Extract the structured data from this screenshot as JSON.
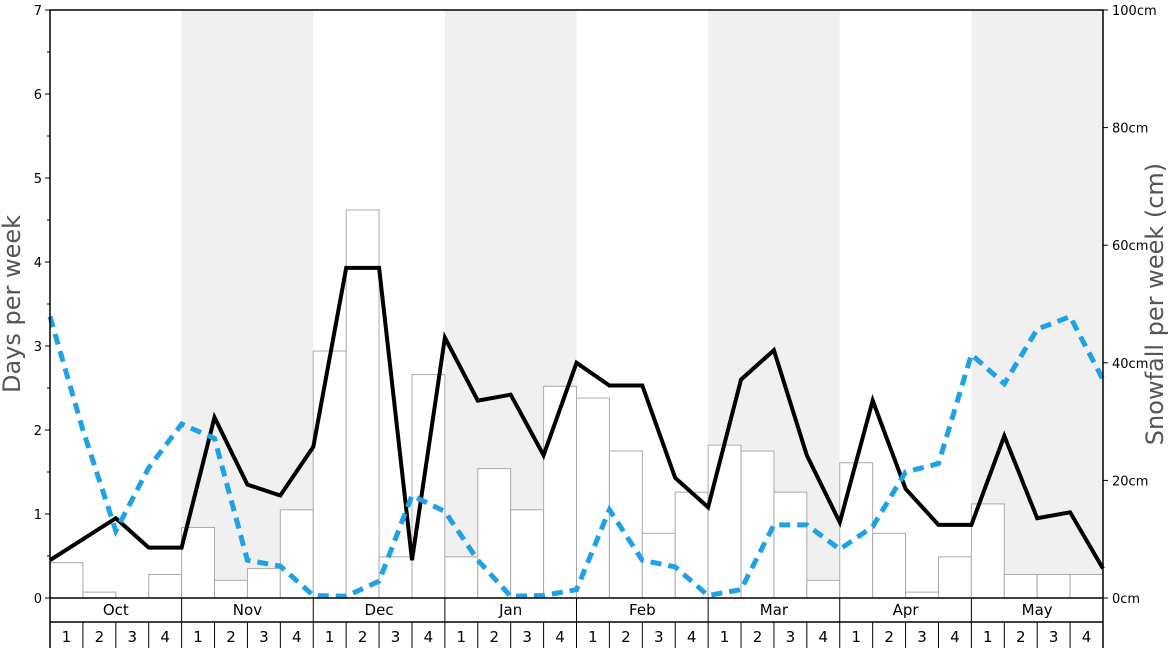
{
  "chart_data": {
    "type": "bar",
    "left_axis": {
      "label": "Days per week",
      "min": 0,
      "max": 7,
      "ticks": [
        "0",
        "1",
        "2",
        "3",
        "4",
        "5",
        "6",
        "7"
      ],
      "tick_values": [
        0,
        1,
        2,
        3,
        4,
        5,
        6,
        7
      ]
    },
    "right_axis": {
      "label": "Snowfall per week (cm)",
      "min": 0,
      "max": 100,
      "ticks": [
        "0cm",
        "20cm",
        "40cm",
        "60cm",
        "80cm",
        "100cm"
      ],
      "tick_values": [
        0,
        20,
        40,
        60,
        80,
        100
      ]
    },
    "months": [
      "Oct",
      "Nov",
      "Dec",
      "Jan",
      "Feb",
      "Mar",
      "Apr",
      "May"
    ],
    "weeks": [
      "1",
      "2",
      "3",
      "4"
    ],
    "shaded_months": [
      1,
      3,
      5,
      7
    ],
    "colors": {
      "snowfall_bar_fill": "#ffffff",
      "snowfall_bar_stroke": "#aaaaaa",
      "snow_days_line": "#000000",
      "dashed_line": "#1ea1e6",
      "shade": "#f0f0f0"
    },
    "series": [
      {
        "kind": "bars",
        "axis": "right",
        "values": [
          6,
          1,
          0,
          4,
          12,
          3,
          5,
          15,
          42,
          66,
          7,
          38,
          7,
          22,
          15,
          36,
          34,
          25,
          11,
          18,
          26,
          25,
          18,
          3,
          23,
          11,
          1,
          7,
          16,
          4,
          4,
          4
        ]
      },
      {
        "kind": "line",
        "axis": "left",
        "values": [
          0.45,
          0.7,
          0.95,
          0.6,
          0.6,
          2.15,
          1.35,
          1.22,
          1.8,
          3.93,
          3.93,
          0.45,
          3.1,
          2.35,
          2.42,
          1.7,
          2.8,
          2.53,
          2.53,
          1.43,
          1.08,
          2.6,
          2.95,
          1.7,
          0.9,
          2.35,
          1.3,
          0.87,
          0.87,
          1.93,
          0.95,
          1.02,
          0.35
        ]
      },
      {
        "kind": "dashed-line",
        "axis": "left",
        "values": [
          3.35,
          2.0,
          0.8,
          1.55,
          2.07,
          1.9,
          0.45,
          0.38,
          0.03,
          0.02,
          0.2,
          1.22,
          1.03,
          0.45,
          0.02,
          0.03,
          0.1,
          1.05,
          0.45,
          0.37,
          0.03,
          0.1,
          0.87,
          0.87,
          0.58,
          0.85,
          1.5,
          1.6,
          2.9,
          2.55,
          3.2,
          3.35,
          2.6
        ]
      }
    ]
  }
}
